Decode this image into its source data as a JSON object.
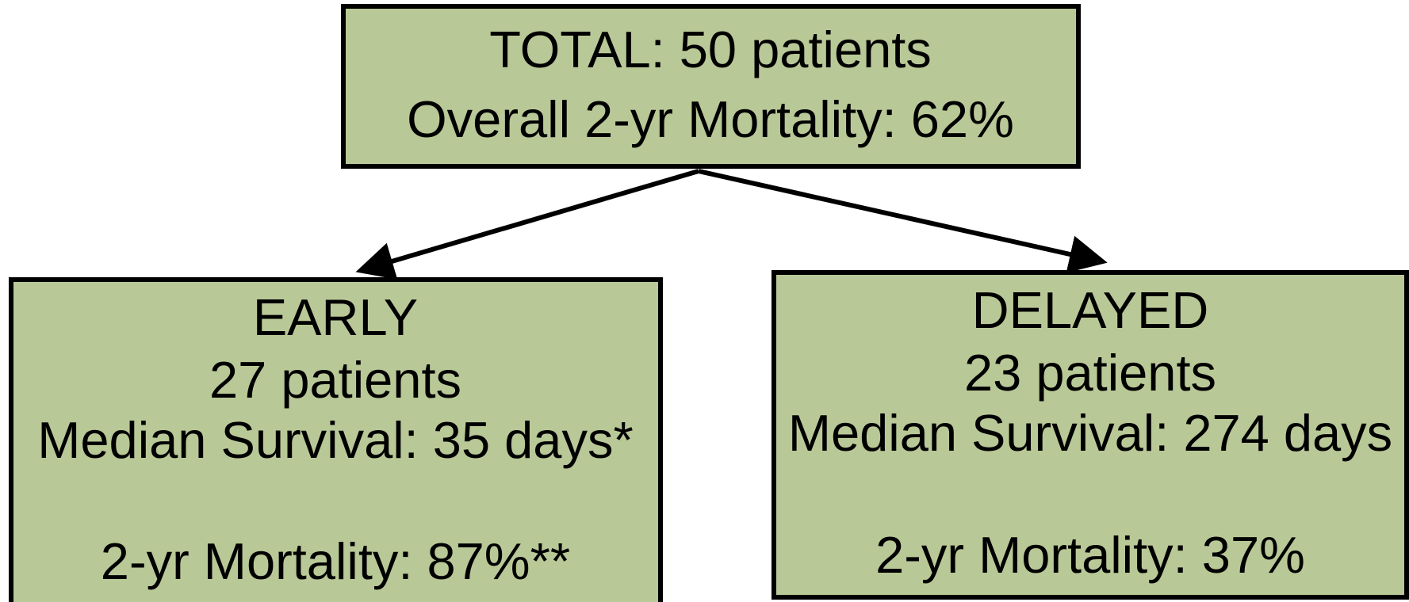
{
  "nodes": [
    {
      "lines": [
        "TOTAL: 50 patients",
        "Overall 2-yr Mortality: 62%"
      ]
    },
    {
      "lines": [
        "EARLY",
        "27 patients",
        "Median Survival: 35 days*",
        "2-yr Mortality: 87%**"
      ]
    },
    {
      "lines": [
        "DELAYED",
        "23 patients",
        "Median Survival: 274 days",
        "2-yr Mortality: 37%"
      ]
    }
  ]
}
